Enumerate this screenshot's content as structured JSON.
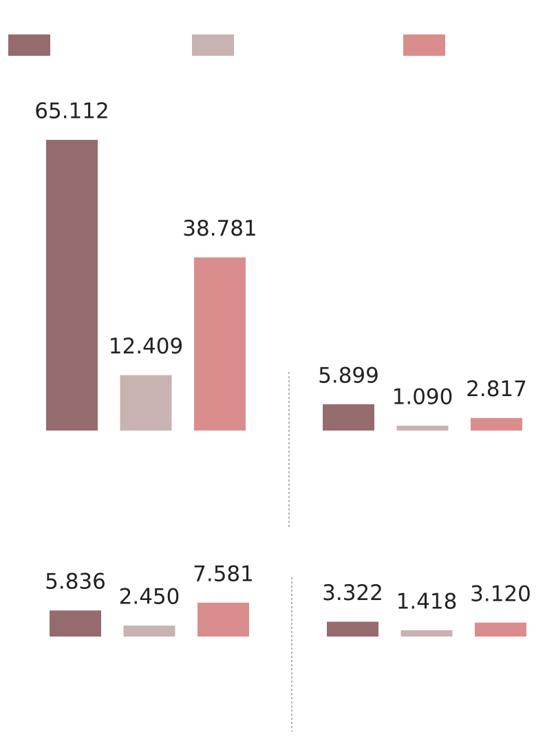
{
  "legend": {
    "colors": [
      "#966b6e",
      "#c8b2b2",
      "#d98e8d"
    ]
  },
  "chart_data": [
    {
      "type": "bar",
      "values": [
        65112,
        12409,
        38781
      ],
      "value_labels": [
        "65.112",
        "12.409",
        "38.781"
      ]
    },
    {
      "type": "bar",
      "values": [
        5899,
        1090,
        2817
      ],
      "value_labels": [
        "5.899",
        "1.090",
        "2.817"
      ]
    },
    {
      "type": "bar",
      "values": [
        5836,
        2450,
        7581
      ],
      "value_labels": [
        "5.836",
        "2.450",
        "7.581"
      ]
    },
    {
      "type": "bar",
      "values": [
        3322,
        1418,
        3120
      ],
      "value_labels": [
        "3.322",
        "1.418",
        "3.120"
      ]
    }
  ]
}
